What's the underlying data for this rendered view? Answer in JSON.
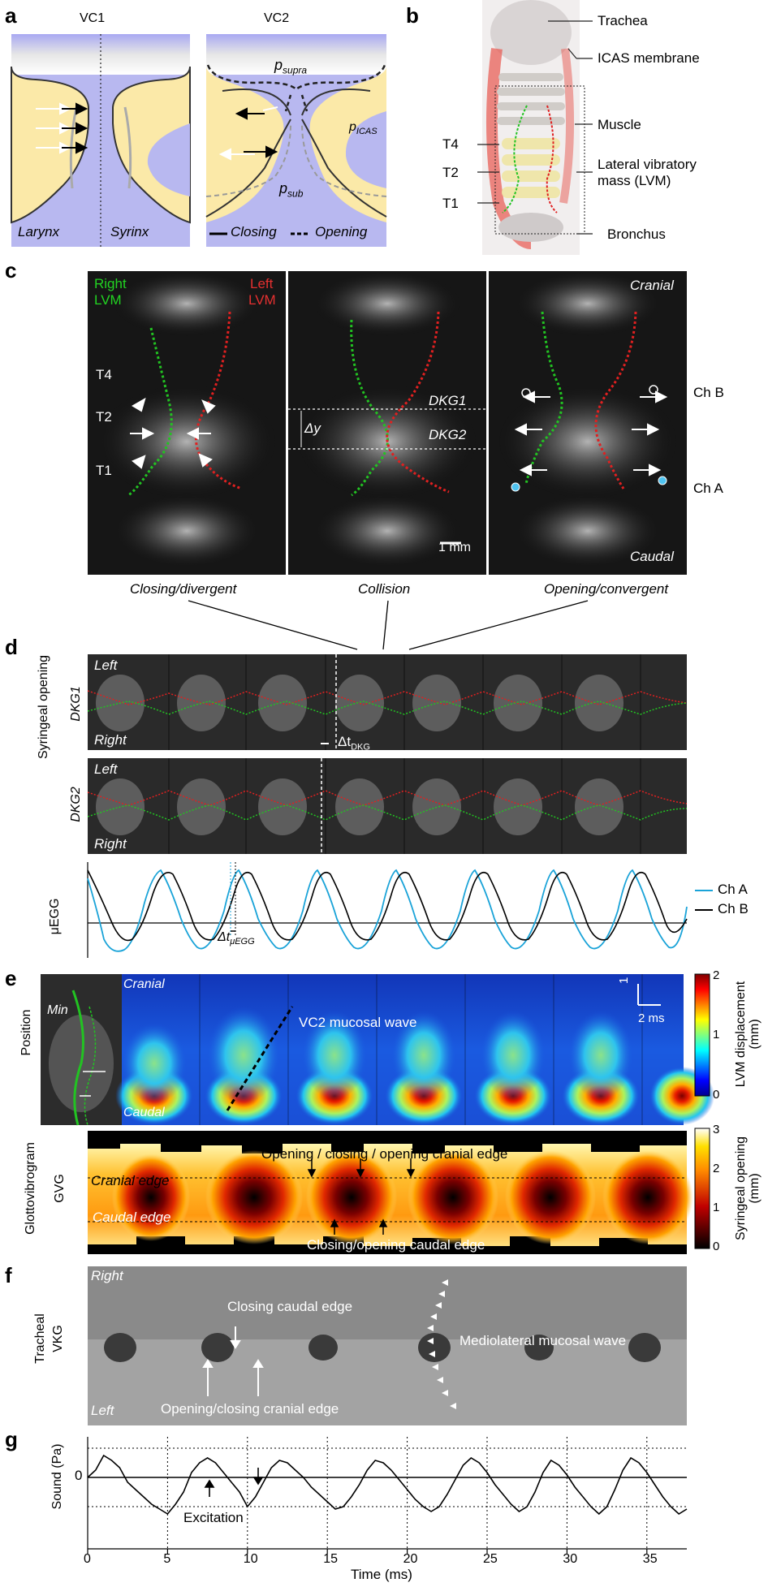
{
  "panels": {
    "a": "a",
    "b": "b",
    "c": "c",
    "d": "d",
    "e": "e",
    "f": "f",
    "g": "g"
  },
  "panel_a": {
    "vc1_title": "VC1",
    "vc2_title": "VC2",
    "larynx": "Larynx",
    "syrinx": "Syrinx",
    "p_supra": "p",
    "p_supra_sub": "supra",
    "p_icas": "p",
    "p_icas_sub": "ICAS",
    "p_sub": "p",
    "p_sub_sub": "sub",
    "legend_closing": "Closing",
    "legend_opening": "Opening"
  },
  "panel_b": {
    "labels": [
      "Trachea",
      "ICAS membrane",
      "Muscle",
      "Lateral vibratory",
      "mass (LVM)",
      "Bronchus"
    ],
    "t_labels": [
      "T4",
      "T2",
      "T1"
    ],
    "colors": {
      "membrane": "#e8574f",
      "right_lvm": "#22c322",
      "left_lvm": "#e02020"
    }
  },
  "panel_c": {
    "right_lvm": [
      "Right",
      "LVM"
    ],
    "left_lvm": [
      "Left",
      "LVM"
    ],
    "t_labels": [
      "T4",
      "T2",
      "T1"
    ],
    "dkg1": "DKG1",
    "dkg2": "DKG2",
    "delta_y": "Δy",
    "scale": "1 mm",
    "cranial": "Cranial",
    "caudal": "Caudal",
    "ch_b": "Ch B",
    "ch_a": "Ch A",
    "captions": [
      "Closing/divergent",
      "Collision",
      "Opening/convergent"
    ]
  },
  "panel_d": {
    "ylabel": "Syringeal opening",
    "dkg1": "DKG1",
    "dkg2": "DKG2",
    "left": "Left",
    "right": "Right",
    "delta_t_dkg": "Δt",
    "delta_t_dkg_sub": "DKG",
    "uegg_label": "μEGG",
    "delta_t_uegg": "Δt",
    "delta_t_uegg_sub": "μEGG",
    "legend": [
      {
        "name": "Ch A",
        "color": "#1aa3d8"
      },
      {
        "name": "Ch B",
        "color": "#000000"
      }
    ]
  },
  "panel_e": {
    "position_label": "Position",
    "min_label": "Min",
    "cranial": "Cranial",
    "caudal": "Caudal",
    "wave_label": "VC2 mucosal wave",
    "scale_mm": "1 mm",
    "scale_ms": "2 ms",
    "cbar1_label": "LVM displacement",
    "cbar1_unit": "(mm)",
    "cbar1_ticks": [
      "2",
      "1",
      "0"
    ],
    "gvg_label1": "Glottovibrogram",
    "gvg_label2": "GVG",
    "cranial_edge": "Cranial edge",
    "caudal_edge": "Caudal edge",
    "top_annot": "Opening / closing / opening cranial edge",
    "bottom_annot": "Closing/opening caudal edge",
    "cbar2_label": "Syringeal opening",
    "cbar2_unit": "(mm)",
    "cbar2_ticks": [
      "3",
      "2",
      "1",
      "0"
    ]
  },
  "panel_f": {
    "ylabel1": "Tracheal",
    "ylabel2": "VKG",
    "right": "Right",
    "left": "Left",
    "closing_caudal": "Closing caudal edge",
    "opening_cranial": "Opening/closing cranial edge",
    "mucosal_wave": "Mediolateral mucosal wave"
  },
  "panel_g": {
    "ylabel": "Sound (Pa)",
    "zero_label": "0",
    "excitation": "Excitation",
    "xlabel": "Time (ms)"
  },
  "chart_data": [
    {
      "type": "line",
      "title": "",
      "xlabel": "Time (ms)",
      "ylabel": "Sound (Pa)",
      "xlim": [
        0,
        37.5
      ],
      "xticks": [
        0,
        5,
        10,
        15,
        20,
        25,
        30,
        35
      ],
      "yticks": [
        0
      ],
      "grid": "dotted vertical lines every 5 ms",
      "series": [
        {
          "x": [
            0,
            0.5,
            1,
            1.5,
            2,
            2.5,
            3,
            3.5,
            4,
            4.5,
            5,
            5.5,
            6,
            6.5,
            7,
            7.5,
            8,
            8.5,
            9,
            9.5,
            10,
            10.5,
            11,
            11.5,
            12,
            12.5,
            13,
            13.5,
            14,
            14.5,
            15,
            15.5,
            16,
            16.5,
            17,
            17.5,
            18,
            18.5,
            19,
            19.5,
            20,
            20.5,
            21,
            21.5,
            22,
            22.5,
            23,
            23.5,
            24,
            24.5,
            25,
            25.5,
            26,
            26.5,
            27,
            27.5,
            28,
            28.5,
            29,
            29.5,
            30,
            30.5,
            31,
            31.5,
            32,
            32.5,
            33,
            33.5,
            34,
            34.5,
            35,
            35.5,
            36,
            36.5,
            37,
            37.5
          ],
          "values": [
            0,
            0.3,
            0.9,
            0.7,
            0.4,
            -0.2,
            -0.5,
            -0.8,
            -1.1,
            -1.3,
            -1.5,
            -1.1,
            -0.6,
            0.2,
            0.6,
            0.8,
            0.6,
            0.2,
            -0.2,
            -0.6,
            -1.2,
            -0.8,
            -0.2,
            0.4,
            0.7,
            0.6,
            0.3,
            0,
            -0.4,
            -0.7,
            -1.0,
            -1.3,
            -1.2,
            -0.8,
            -0.3,
            0.3,
            0.7,
            0.6,
            0.3,
            -0.1,
            -0.5,
            -0.9,
            -1.2,
            -1.4,
            -1.2,
            -0.7,
            -0.1,
            0.5,
            0.8,
            0.6,
            0.2,
            -0.3,
            -0.7,
            -1.1,
            -1.4,
            -1.2,
            -0.6,
            0.2,
            0.7,
            0.5,
            0.1,
            -0.4,
            -0.8,
            -1.2,
            -1.5,
            -1.2,
            -0.5,
            0.3,
            0.8,
            0.6,
            0.2,
            -0.3,
            -0.8,
            -1.2,
            -1.5,
            -1.3
          ]
        }
      ]
    }
  ]
}
